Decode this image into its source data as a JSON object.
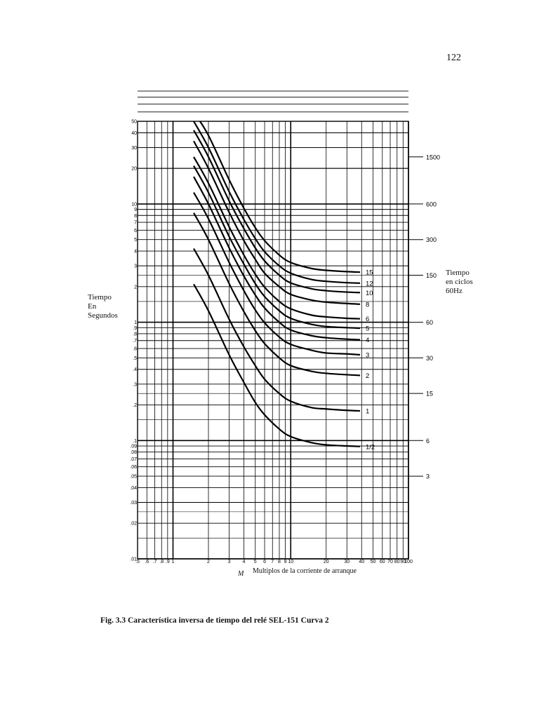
{
  "page_number": "122",
  "caption": "Fig. 3.3 Característica inversa de tiempo del relé SEL-151 Curva 2",
  "chart_data": {
    "type": "line",
    "title": "",
    "ylabel": "Tiempo\nEn\nSegundos",
    "xlabel": "Multiplos de la corriente de arranque",
    "x_symbol": "M",
    "y2label": "Tiempo\nen ciclos\n60Hz",
    "xscale": "log",
    "yscale": "log",
    "xlim": [
      0.5,
      100
    ],
    "ylim": [
      0.01,
      50
    ],
    "grid": true,
    "x_tick_labels": [
      {
        "x": 0.5,
        "label": ".5"
      },
      {
        "x": 0.6,
        "label": ".6"
      },
      {
        "x": 0.7,
        "label": ".7"
      },
      {
        "x": 0.8,
        "label": ".8"
      },
      {
        "x": 0.9,
        "label": ".9"
      },
      {
        "x": 1,
        "label": "1"
      },
      {
        "x": 2,
        "label": "2"
      },
      {
        "x": 3,
        "label": "3"
      },
      {
        "x": 4,
        "label": "4"
      },
      {
        "x": 5,
        "label": "5"
      },
      {
        "x": 6,
        "label": "6"
      },
      {
        "x": 7,
        "label": "7"
      },
      {
        "x": 8,
        "label": "8"
      },
      {
        "x": 9,
        "label": "9"
      },
      {
        "x": 10,
        "label": "10"
      },
      {
        "x": 20,
        "label": "20"
      },
      {
        "x": 30,
        "label": "30"
      },
      {
        "x": 40,
        "label": "40"
      },
      {
        "x": 50,
        "label": "50"
      },
      {
        "x": 60,
        "label": "60"
      },
      {
        "x": 70,
        "label": "70"
      },
      {
        "x": 80,
        "label": "80"
      },
      {
        "x": 90,
        "label": "90"
      },
      {
        "x": 100,
        "label": "100"
      }
    ],
    "y_tick_labels": [
      {
        "y": 50,
        "label": "50"
      },
      {
        "y": 40,
        "label": "40"
      },
      {
        "y": 30,
        "label": "30"
      },
      {
        "y": 20,
        "label": "20"
      },
      {
        "y": 10,
        "label": "10"
      },
      {
        "y": 9,
        "label": "9"
      },
      {
        "y": 8,
        "label": "8"
      },
      {
        "y": 7,
        "label": "7"
      },
      {
        "y": 6,
        "label": "6"
      },
      {
        "y": 5,
        "label": "5"
      },
      {
        "y": 4,
        "label": "4"
      },
      {
        "y": 3,
        "label": "3"
      },
      {
        "y": 2,
        "label": "2"
      },
      {
        "y": 1,
        "label": "1"
      },
      {
        "y": 0.9,
        "label": ".9"
      },
      {
        "y": 0.8,
        "label": ".8"
      },
      {
        "y": 0.7,
        "label": ".7"
      },
      {
        "y": 0.6,
        "label": ".6"
      },
      {
        "y": 0.5,
        "label": ".5"
      },
      {
        "y": 0.4,
        "label": ".4"
      },
      {
        "y": 0.3,
        "label": ".3"
      },
      {
        "y": 0.2,
        "label": ".2"
      },
      {
        "y": 0.1,
        "label": ".1"
      },
      {
        "y": 0.09,
        "label": ".09"
      },
      {
        "y": 0.08,
        "label": ".08"
      },
      {
        "y": 0.07,
        "label": ".07"
      },
      {
        "y": 0.06,
        "label": ".06"
      },
      {
        "y": 0.05,
        "label": ".05"
      },
      {
        "y": 0.04,
        "label": ".04"
      },
      {
        "y": 0.03,
        "label": ".03"
      },
      {
        "y": 0.02,
        "label": ".02"
      },
      {
        "y": 0.01,
        "label": ".01"
      }
    ],
    "y2_ticks": [
      {
        "cycles": "1500",
        "seconds": 25
      },
      {
        "cycles": "600",
        "seconds": 10
      },
      {
        "cycles": "300",
        "seconds": 5
      },
      {
        "cycles": "150",
        "seconds": 2.5
      },
      {
        "cycles": "60",
        "seconds": 1
      },
      {
        "cycles": "30",
        "seconds": 0.5
      },
      {
        "cycles": "15",
        "seconds": 0.25
      },
      {
        "cycles": "6",
        "seconds": 0.1
      },
      {
        "cycles": "3",
        "seconds": 0.05
      }
    ],
    "curve_x": [
      1.5,
      2,
      3,
      4,
      5,
      6,
      8,
      10,
      15,
      20,
      30,
      40
    ],
    "series": [
      {
        "name": "15",
        "y": [
          60,
          38,
          16,
          9.2,
          6.3,
          4.9,
          3.7,
          3.2,
          2.85,
          2.75,
          2.68,
          2.65
        ]
      },
      {
        "name": "12",
        "y": [
          50,
          30,
          12.7,
          7.4,
          5.1,
          3.95,
          3.0,
          2.6,
          2.3,
          2.22,
          2.16,
          2.14
        ]
      },
      {
        "name": "10",
        "y": [
          42,
          25,
          10.6,
          6.2,
          4.25,
          3.3,
          2.5,
          2.15,
          1.92,
          1.85,
          1.8,
          1.78
        ]
      },
      {
        "name": "8",
        "y": [
          34,
          20,
          8.5,
          4.9,
          3.4,
          2.6,
          2.0,
          1.72,
          1.54,
          1.48,
          1.44,
          1.42
        ]
      },
      {
        "name": "6",
        "y": [
          25,
          15,
          6.4,
          3.7,
          2.55,
          1.98,
          1.5,
          1.3,
          1.15,
          1.11,
          1.08,
          1.07
        ]
      },
      {
        "name": "5",
        "y": [
          21,
          12.5,
          5.3,
          3.1,
          2.12,
          1.65,
          1.25,
          1.08,
          0.96,
          0.92,
          0.9,
          0.89
        ]
      },
      {
        "name": "4",
        "y": [
          17,
          10,
          4.25,
          2.46,
          1.7,
          1.32,
          1.0,
          0.86,
          0.77,
          0.74,
          0.72,
          0.71
        ]
      },
      {
        "name": "3",
        "y": [
          12.5,
          7.5,
          3.2,
          1.85,
          1.27,
          0.99,
          0.75,
          0.65,
          0.58,
          0.55,
          0.54,
          0.53
        ]
      },
      {
        "name": "2",
        "y": [
          8.4,
          5.0,
          2.12,
          1.23,
          0.85,
          0.66,
          0.5,
          0.43,
          0.385,
          0.37,
          0.36,
          0.355
        ]
      },
      {
        "name": "1",
        "y": [
          4.2,
          2.5,
          1.06,
          0.62,
          0.43,
          0.33,
          0.25,
          0.215,
          0.19,
          0.185,
          0.18,
          0.178
        ]
      },
      {
        "name": "1/2",
        "y": [
          2.1,
          1.25,
          0.53,
          0.31,
          0.21,
          0.165,
          0.125,
          0.108,
          0.096,
          0.092,
          0.09,
          0.089
        ]
      }
    ]
  }
}
